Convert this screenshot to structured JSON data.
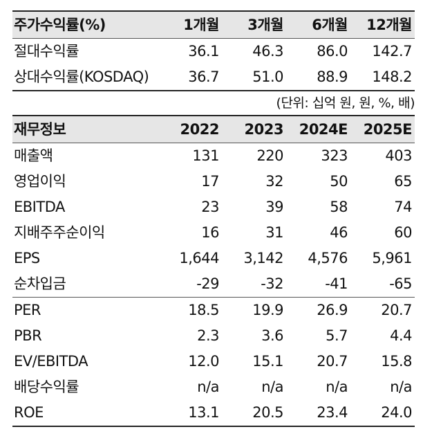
{
  "stock_returns": {
    "header": [
      "주가수익률(%)",
      "1개월",
      "3개월",
      "6개월",
      "12개월"
    ],
    "rows": [
      [
        "절대수익률",
        "36.1",
        "46.3",
        "86.0",
        "142.7"
      ],
      [
        "상대수익률(KOSDAQ)",
        "36.7",
        "51.0",
        "88.9",
        "148.2"
      ]
    ]
  },
  "unit_note": "(단위: 십억 원, 원, %, 배)",
  "financials": {
    "header": [
      "재무정보",
      "2022",
      "2023",
      "2024E",
      "2025E"
    ],
    "rows": [
      [
        "매출액",
        "131",
        "220",
        "323",
        "403"
      ],
      [
        "영업이익",
        "17",
        "32",
        "50",
        "65"
      ],
      [
        "EBITDA",
        "23",
        "39",
        "58",
        "74"
      ],
      [
        "지배주주순이익",
        "16",
        "31",
        "46",
        "60"
      ],
      [
        "EPS",
        "1,644",
        "3,142",
        "4,576",
        "5,961"
      ],
      [
        "순차입금",
        "-29",
        "-32",
        "-41",
        "-65"
      ],
      [
        "PER",
        "18.5",
        "19.9",
        "26.9",
        "20.7"
      ],
      [
        "PBR",
        "2.3",
        "3.6",
        "5.7",
        "4.4"
      ],
      [
        "EV/EBITDA",
        "12.0",
        "15.1",
        "20.7",
        "15.8"
      ],
      [
        "배당수익률",
        "n/a",
        "n/a",
        "n/a",
        "n/a"
      ],
      [
        "ROE",
        "13.1",
        "20.5",
        "23.4",
        "24.0"
      ]
    ]
  }
}
